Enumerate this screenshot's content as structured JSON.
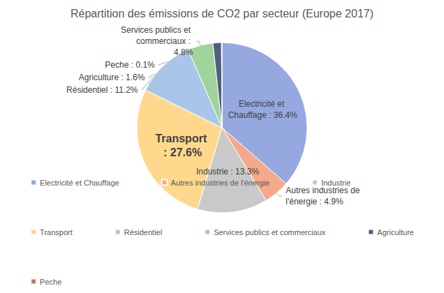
{
  "chart_data": {
    "type": "pie",
    "title": "Répartition des émissions de CO2 par secteur (Europe 2017)",
    "categories": [
      "Electricité et Chauffage",
      "Autres industries de l'énergie",
      "Industrie",
      "Transport",
      "Résidentiel",
      "Services publics et commerciaux",
      "Agriculture",
      "Peche"
    ],
    "values": [
      36.4,
      4.9,
      13.3,
      27.6,
      11.2,
      4.8,
      1.6,
      0.1
    ],
    "value_labels": [
      "Electricité et Chauffage : 36.4%",
      "Autres industries de l'énergie : 4.9%",
      "Industrie : 13.3%",
      "Transport : 27.6%",
      "Résidentiel : 11.2%",
      "Services publics et commerciaux : 4.8%",
      "Agriculture : 1.6%",
      "Peche : 0.1%"
    ],
    "colors": [
      "#95a9e0",
      "#f5a88a",
      "#c9c9c9",
      "#ffd88e",
      "#a9c6ea",
      "#9fd49a",
      "#4f5f7f",
      "#c07b5e"
    ],
    "data_labels": true,
    "legend": "bottom"
  }
}
